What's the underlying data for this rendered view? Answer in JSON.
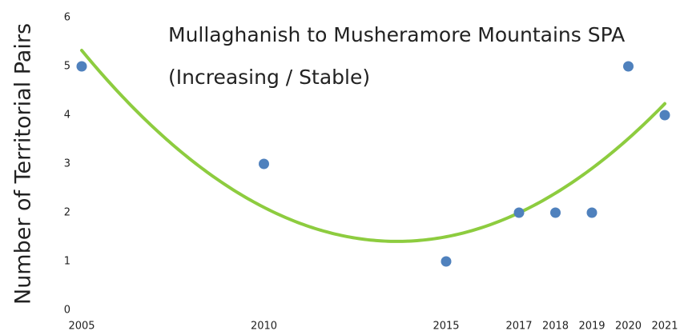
{
  "chart_data": {
    "type": "scatter",
    "title": "Mullaghanish to Musheramore Mountains SPA",
    "subtitle": "(Increasing / Stable)",
    "y_label": "Number of Territorial Pairs",
    "x": [
      2005,
      2010,
      2015,
      2017,
      2018,
      2019,
      2020,
      2021
    ],
    "series": [
      {
        "name": "Territorial Pairs",
        "color": "#4f81bd",
        "values": [
          5,
          3,
          1,
          2,
          2,
          2,
          5,
          4
        ]
      }
    ],
    "xlim": [
      2005,
      2021
    ],
    "xticks": [
      2005,
      2010,
      2015,
      2017,
      2018,
      2019,
      2020,
      2021
    ],
    "ylim": [
      0,
      6
    ],
    "yticks": [
      0,
      1,
      2,
      3,
      4,
      5,
      6
    ],
    "grid": false,
    "trendline": {
      "type": "polynomial",
      "order": 2,
      "color": "#8dcc3f"
    }
  }
}
